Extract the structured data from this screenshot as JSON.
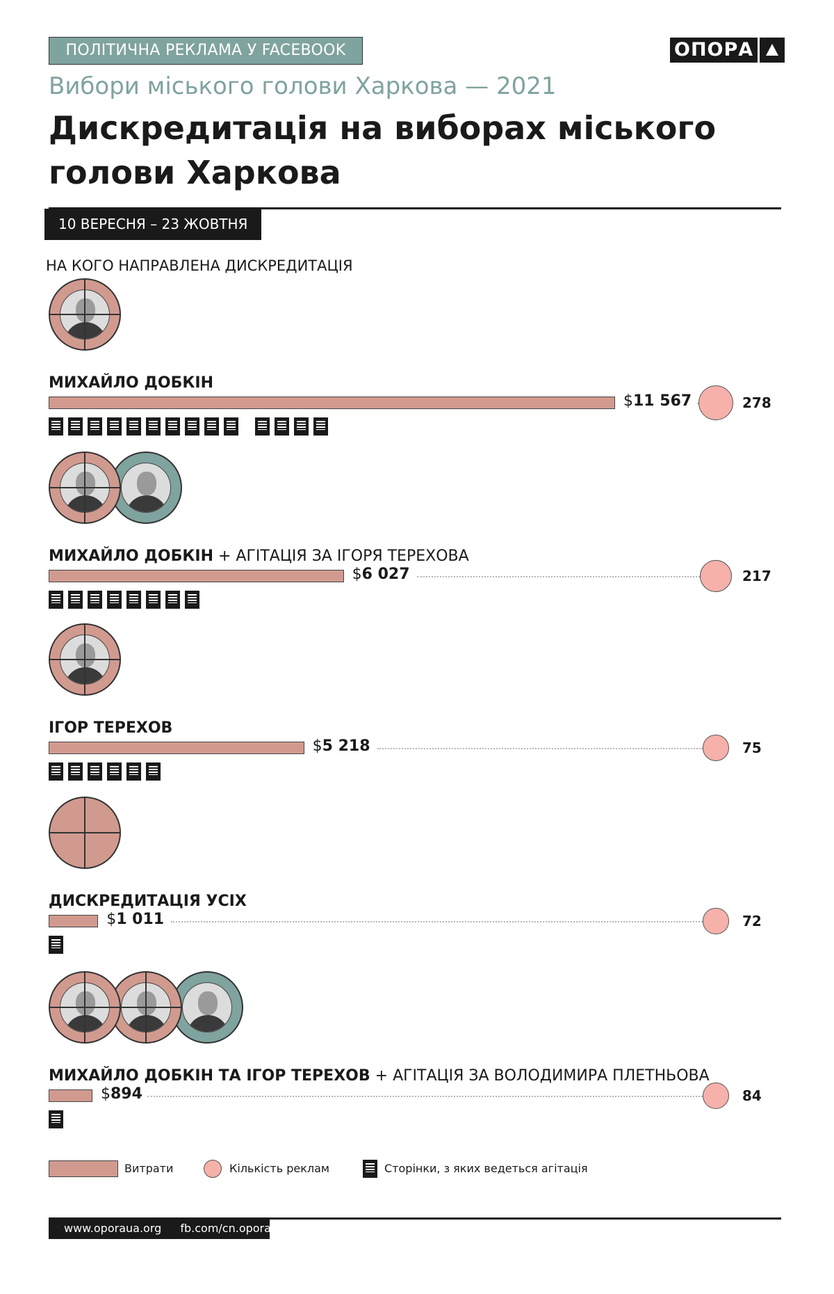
{
  "header": {
    "tag": "ПОЛІТИЧНА РЕКЛАМА У FACEBOOK",
    "logo_text": "ОПОРА",
    "subtitle": "Вибори міського голови Харкова — 2021",
    "title": "Дискредитація на виборах міського голови Харкова",
    "date_range": "10 ВЕРЕСНЯ – 23 ЖОВТНЯ",
    "section_title": "НА КОГО НАПРАВЛЕНА ДИСКРЕДИТАЦІЯ"
  },
  "chart_data": {
    "type": "bar",
    "categories": [
      "МИХАЙЛО ДОБКІН",
      "МИХАЙЛО ДОБКІН + АГІТАЦІЯ ЗА ІГОРЯ ТЕРЕХОВА",
      "ІГОР ТЕРЕХОВ",
      "ДИСКРЕДИТАЦІЯ УСІХ",
      "МИХАЙЛО ДОБКІН ТА ІГОР ТЕРЕХОВ + АГІТАЦІЯ ЗА ВОЛОДИМИРА ПЛЕТНЬОВА"
    ],
    "series": [
      {
        "name": "Витрати",
        "values": [
          11567,
          6027,
          5218,
          1011,
          894
        ]
      },
      {
        "name": "Кількість реклам",
        "values": [
          278,
          217,
          75,
          72,
          84
        ]
      },
      {
        "name": "Сторінки, з яких ведеться агітація",
        "values": [
          14,
          8,
          6,
          1,
          1
        ]
      }
    ],
    "xlim": [
      0,
      11567
    ]
  },
  "rows": [
    {
      "label_bold": "МИХАЙЛО ДОБКІН",
      "label_rest": "",
      "amount_currency": "$",
      "amount_value": "11 567",
      "ads": "278",
      "pages": 14,
      "avatars": [
        "pink"
      ]
    },
    {
      "label_bold": "МИХАЙЛО ДОБКІН",
      "label_rest": " + АГІТАЦІЯ ЗА ІГОРЯ ТЕРЕХОВА",
      "amount_currency": "$",
      "amount_value": "6 027",
      "ads": "217",
      "pages": 8,
      "avatars": [
        "pink",
        "teal"
      ]
    },
    {
      "label_bold": "ІГОР ТЕРЕХОВ",
      "label_rest": "",
      "amount_currency": "$",
      "amount_value": "5 218",
      "ads": "75",
      "pages": 6,
      "avatars": [
        "pink"
      ]
    },
    {
      "label_bold": "ДИСКРЕДИТАЦІЯ УСІХ",
      "label_rest": "",
      "amount_currency": "$",
      "amount_value": "1 011",
      "ads": "72",
      "pages": 1,
      "avatars": [
        "full"
      ]
    },
    {
      "label_bold": "МИХАЙЛО ДОБКІН ТА ІГОР ТЕРЕХОВ",
      "label_rest": " + АГІТАЦІЯ ЗА ВОЛОДИМИРА ПЛЕТНЬОВА",
      "amount_currency": "$",
      "amount_value": "894",
      "ads": "84",
      "pages": 1,
      "avatars": [
        "pink",
        "pink",
        "teal"
      ]
    }
  ],
  "legend": {
    "spend": "Витрати",
    "ads": "Кількість реклам",
    "pages": "Сторінки, з яких ведеться агітація"
  },
  "footer": {
    "site": "www.oporaua.org",
    "fb": "fb.com/cn.opora"
  },
  "colors": {
    "bar": "#d19a8f",
    "ad_circle": "#f6b1ab",
    "accent_teal": "#7fa39e",
    "dark": "#1a1a1a"
  },
  "icons": {
    "page": "page-icon",
    "avatar": "candidate-avatar",
    "logo": "triangle-logo-icon"
  }
}
